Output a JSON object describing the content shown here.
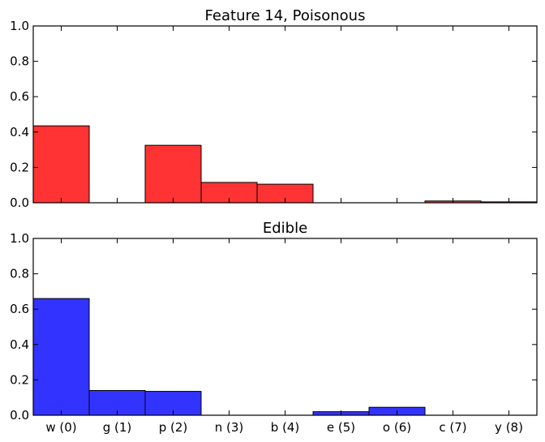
{
  "chart_data": [
    {
      "type": "bar",
      "title": "Feature 14, Poisonous",
      "xlabel": "",
      "ylabel": "",
      "categories": [
        "w (0)",
        "g (1)",
        "p (2)",
        "n (3)",
        "b (4)",
        "e (5)",
        "o (6)",
        "c (7)",
        "y (8)"
      ],
      "values": [
        0.435,
        0.0,
        0.325,
        0.115,
        0.105,
        0.0,
        0.0,
        0.01,
        0.005
      ],
      "ylim": [
        0,
        1.0
      ],
      "yticks": [
        "0.0",
        "0.2",
        "0.4",
        "0.6",
        "0.8",
        "1.0"
      ],
      "show_xtick_labels": false,
      "color": "#ff3333",
      "grid": false
    },
    {
      "type": "bar",
      "title": "Edible",
      "xlabel": "",
      "ylabel": "",
      "categories": [
        "w (0)",
        "g (1)",
        "p (2)",
        "n (3)",
        "b (4)",
        "e (5)",
        "o (6)",
        "c (7)",
        "y (8)"
      ],
      "values": [
        0.66,
        0.14,
        0.135,
        0.0,
        0.0,
        0.02,
        0.045,
        0.0,
        0.0
      ],
      "ylim": [
        0,
        1.0
      ],
      "yticks": [
        "0.0",
        "0.2",
        "0.4",
        "0.6",
        "0.8",
        "1.0"
      ],
      "show_xtick_labels": true,
      "color": "#3333ff",
      "grid": false
    }
  ]
}
